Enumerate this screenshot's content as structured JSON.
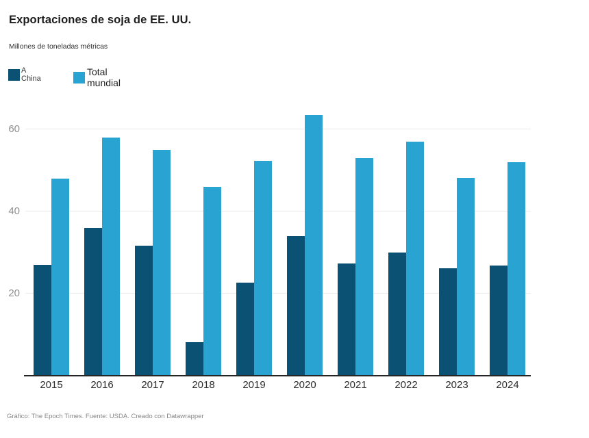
{
  "header": {
    "title": "Exportaciones de soja de EE. UU.",
    "subtitle": "Millones de toneladas métricas"
  },
  "legend": [
    {
      "label": "A China",
      "color": "#0b5174"
    },
    {
      "label": "Total mundial",
      "color": "#29a3d1"
    }
  ],
  "footer": {
    "credit": "Gráfico: The Epoch Times. Fuente: USDA. Creado con Datawrapper"
  },
  "chart_data": {
    "type": "bar",
    "title": "Exportaciones de soja de EE. UU.",
    "ylabel": "Millones de toneladas métricas",
    "categories": [
      "2015",
      "2016",
      "2017",
      "2018",
      "2019",
      "2020",
      "2021",
      "2022",
      "2023",
      "2024"
    ],
    "series": [
      {
        "name": "A China",
        "color": "#0b5174",
        "values": [
          27,
          36,
          31.7,
          8.2,
          22.6,
          34,
          27.3,
          30.1,
          26.2,
          26.8
        ]
      },
      {
        "name": "Total mundial",
        "color": "#29a3d1",
        "values": [
          48,
          58,
          55,
          46,
          52.3,
          63.5,
          53,
          57,
          48.2,
          52
        ]
      }
    ],
    "yticks": [
      20,
      40,
      60
    ],
    "ylim": [
      0,
      66.7
    ],
    "grid": true,
    "legend_position": "top-left"
  }
}
